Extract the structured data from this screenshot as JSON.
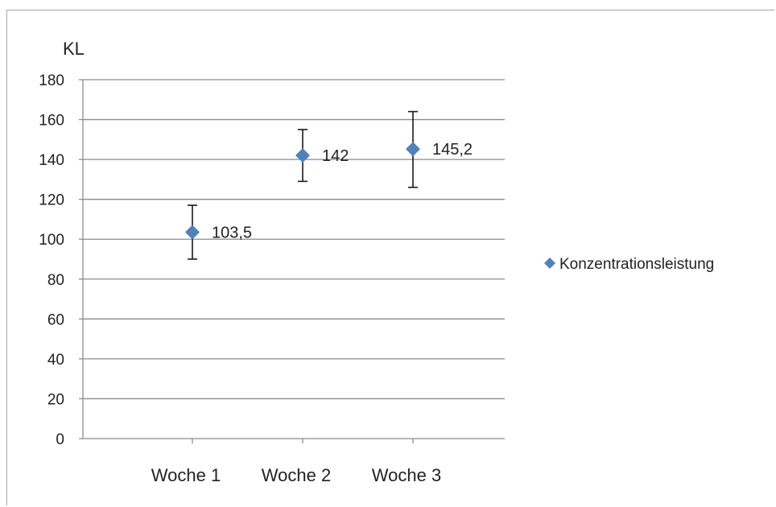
{
  "chart_data": {
    "type": "scatter",
    "title": "",
    "xlabel": "",
    "ylabel": "KL",
    "ylim": [
      0,
      180
    ],
    "y_ticks": [
      0,
      20,
      40,
      60,
      80,
      100,
      120,
      140,
      160,
      180
    ],
    "categories": [
      "Woche 1",
      "Woche 2",
      "Woche 3"
    ],
    "grid": true,
    "legend_position": "right",
    "series": [
      {
        "name": "Konzentrationsleistung",
        "color": "#4f81bd",
        "marker": "diamond",
        "values": [
          103.5,
          142,
          145.2
        ],
        "error_low": [
          90,
          129,
          126
        ],
        "error_high": [
          117,
          155,
          164
        ],
        "data_labels": [
          "103,5",
          "142",
          "145,2"
        ]
      }
    ]
  }
}
